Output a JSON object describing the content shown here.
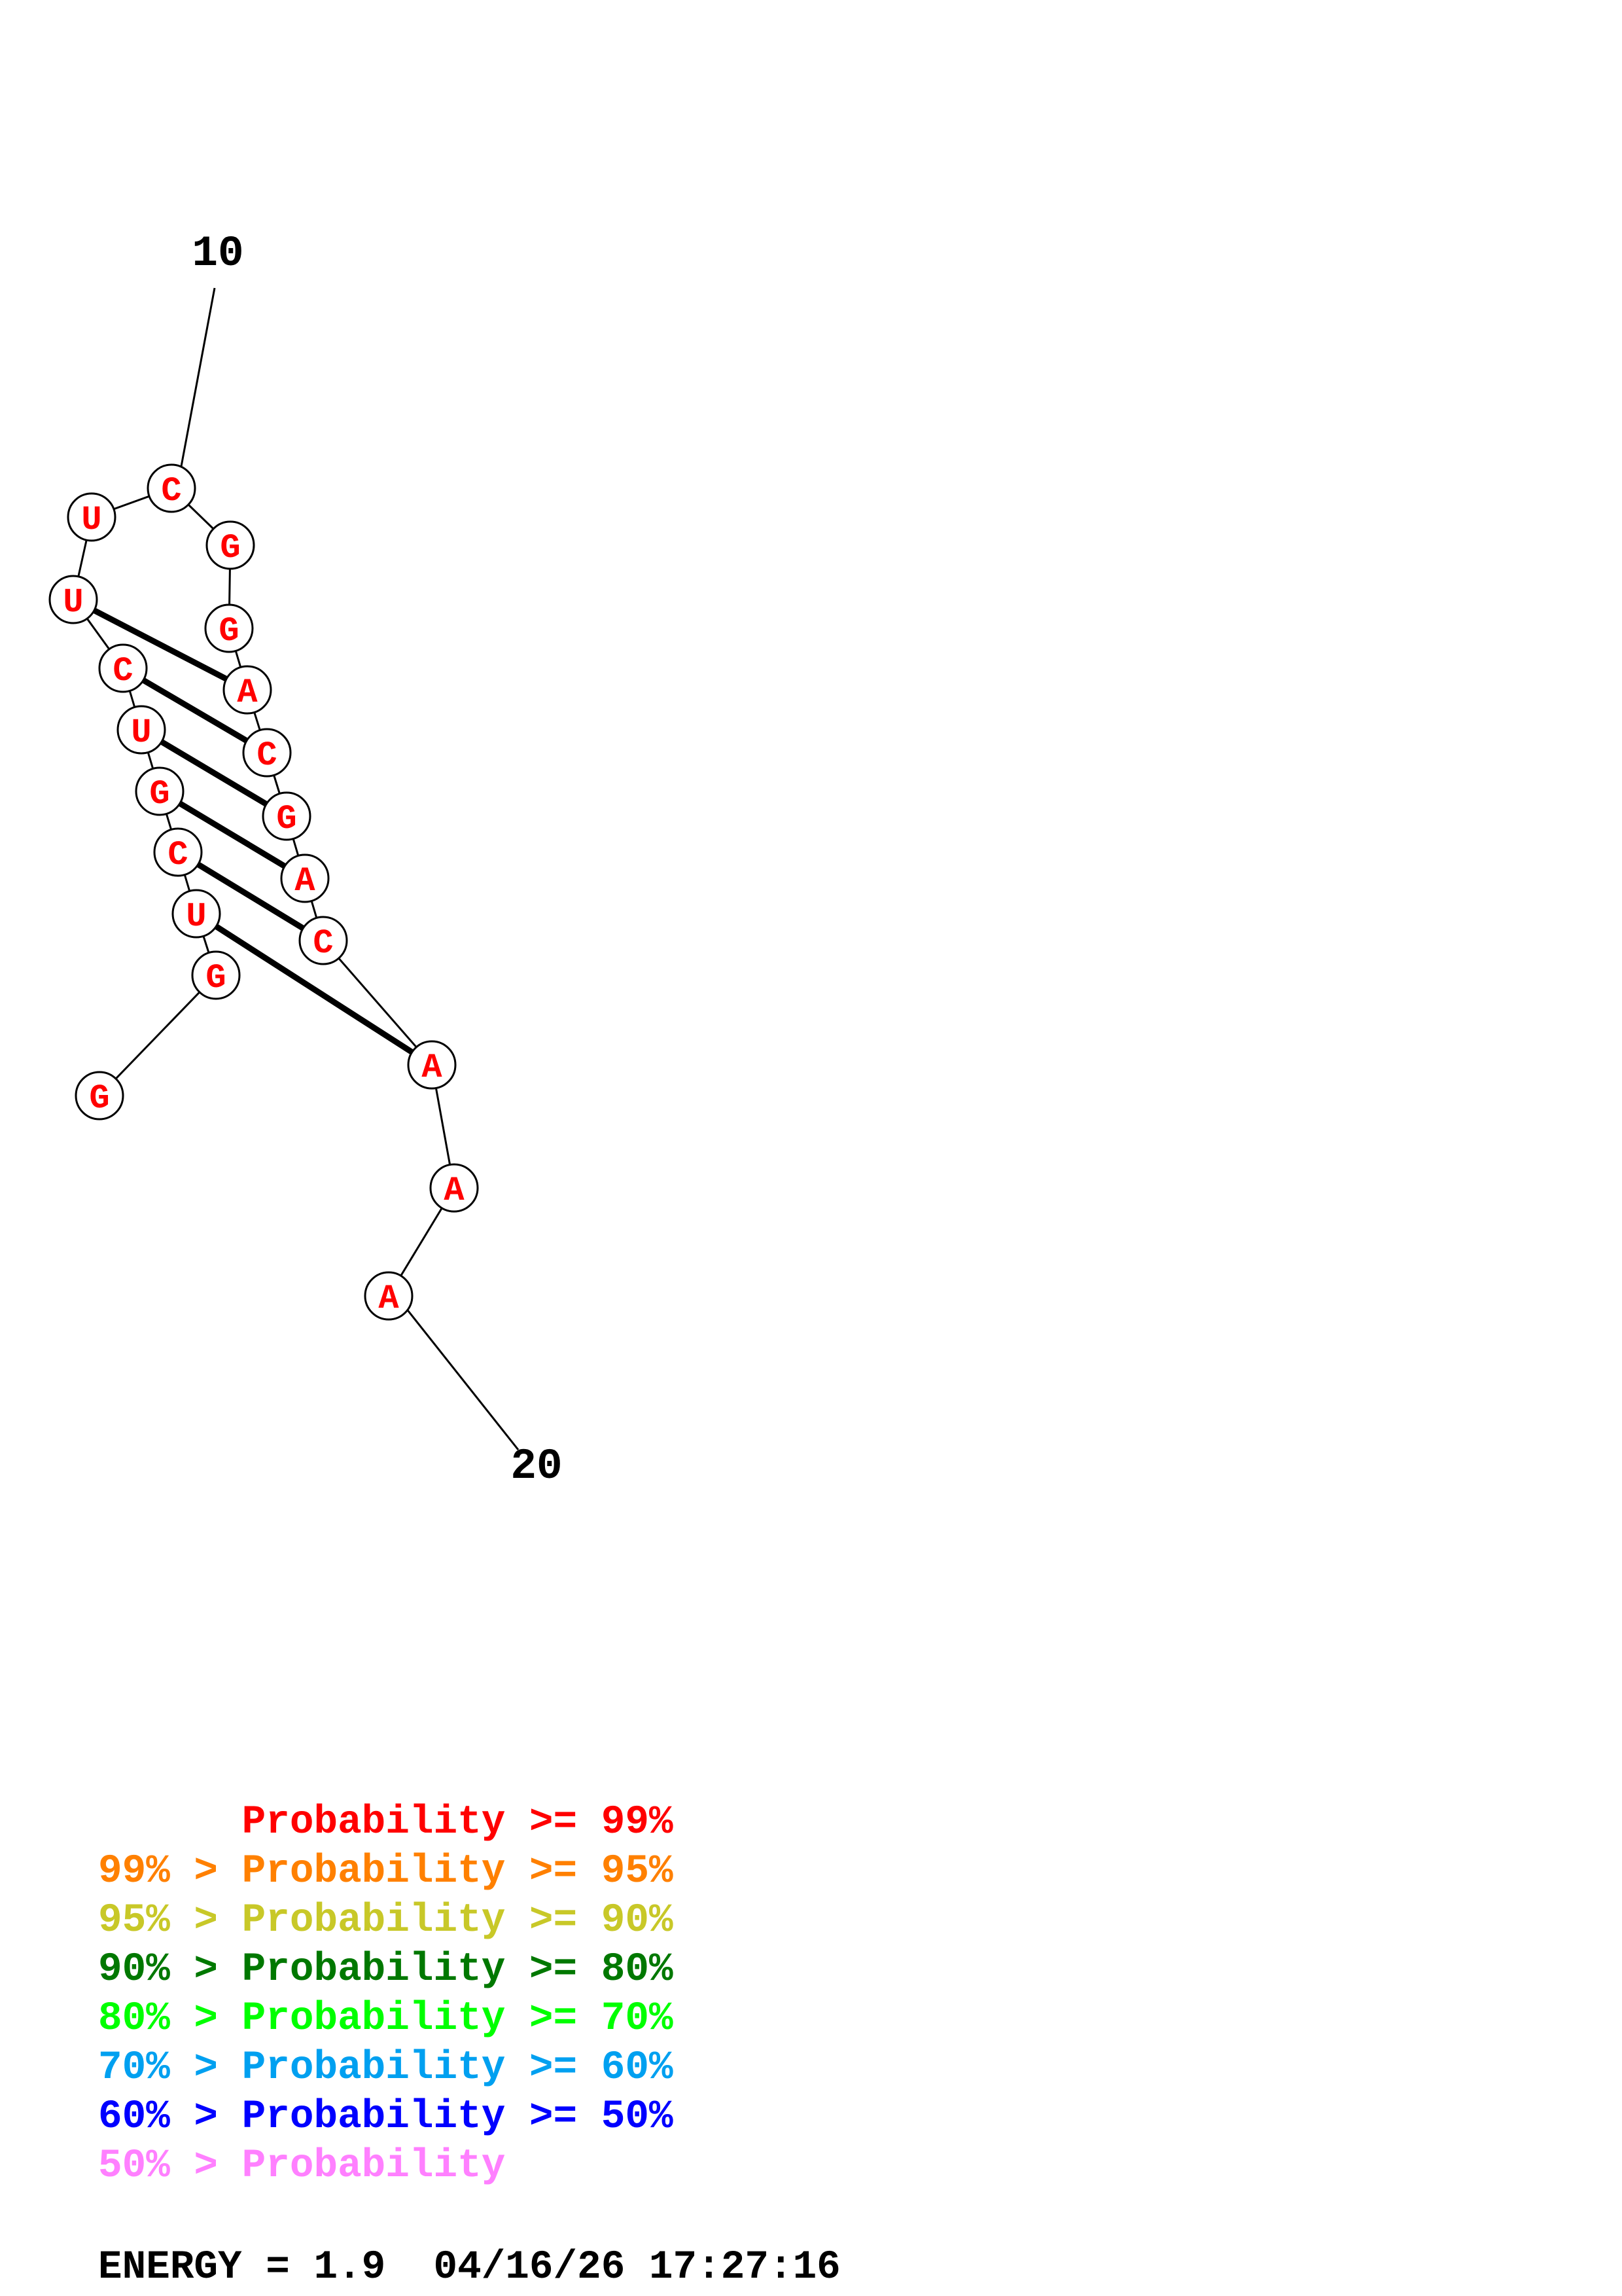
{
  "structure": {
    "nucleotides": [
      "G",
      "G",
      "U",
      "C",
      "G",
      "U",
      "C",
      "U",
      "U",
      "C",
      "G",
      "G",
      "A",
      "C",
      "G",
      "A",
      "C",
      "A",
      "A",
      "A"
    ],
    "pairs": [
      [
        2,
        17
      ],
      [
        3,
        16
      ],
      [
        4,
        15
      ],
      [
        5,
        14
      ],
      [
        6,
        13
      ],
      [
        7,
        12
      ]
    ],
    "markers": [
      "10",
      "20"
    ],
    "colors": {
      "nucleotide_text": "#ff0000",
      "backbone": "#000000",
      "node_fill": "#ffffff"
    }
  },
  "legend": [
    {
      "prefix": "",
      "label": "Probability >= 99%",
      "color": "#ff0000"
    },
    {
      "prefix": "99% > ",
      "label": "Probability >= 95%",
      "color": "#ff8000"
    },
    {
      "prefix": "95% > ",
      "label": "Probability >= 90%",
      "color": "#c8c828"
    },
    {
      "prefix": "90% > ",
      "label": "Probability >= 80%",
      "color": "#007800"
    },
    {
      "prefix": "80% > ",
      "label": "Probability >= 70%",
      "color": "#00ff00"
    },
    {
      "prefix": "70% > ",
      "label": "Probability >= 60%",
      "color": "#00a0f0"
    },
    {
      "prefix": "60% > ",
      "label": "Probability >= 50%",
      "color": "#0000ff"
    },
    {
      "prefix": "50% > ",
      "label": "Probability",
      "color": "#ff80ff"
    }
  ],
  "footer": {
    "energy_line": "ENERGY = 1.9  04/16/26 17:27:16"
  }
}
